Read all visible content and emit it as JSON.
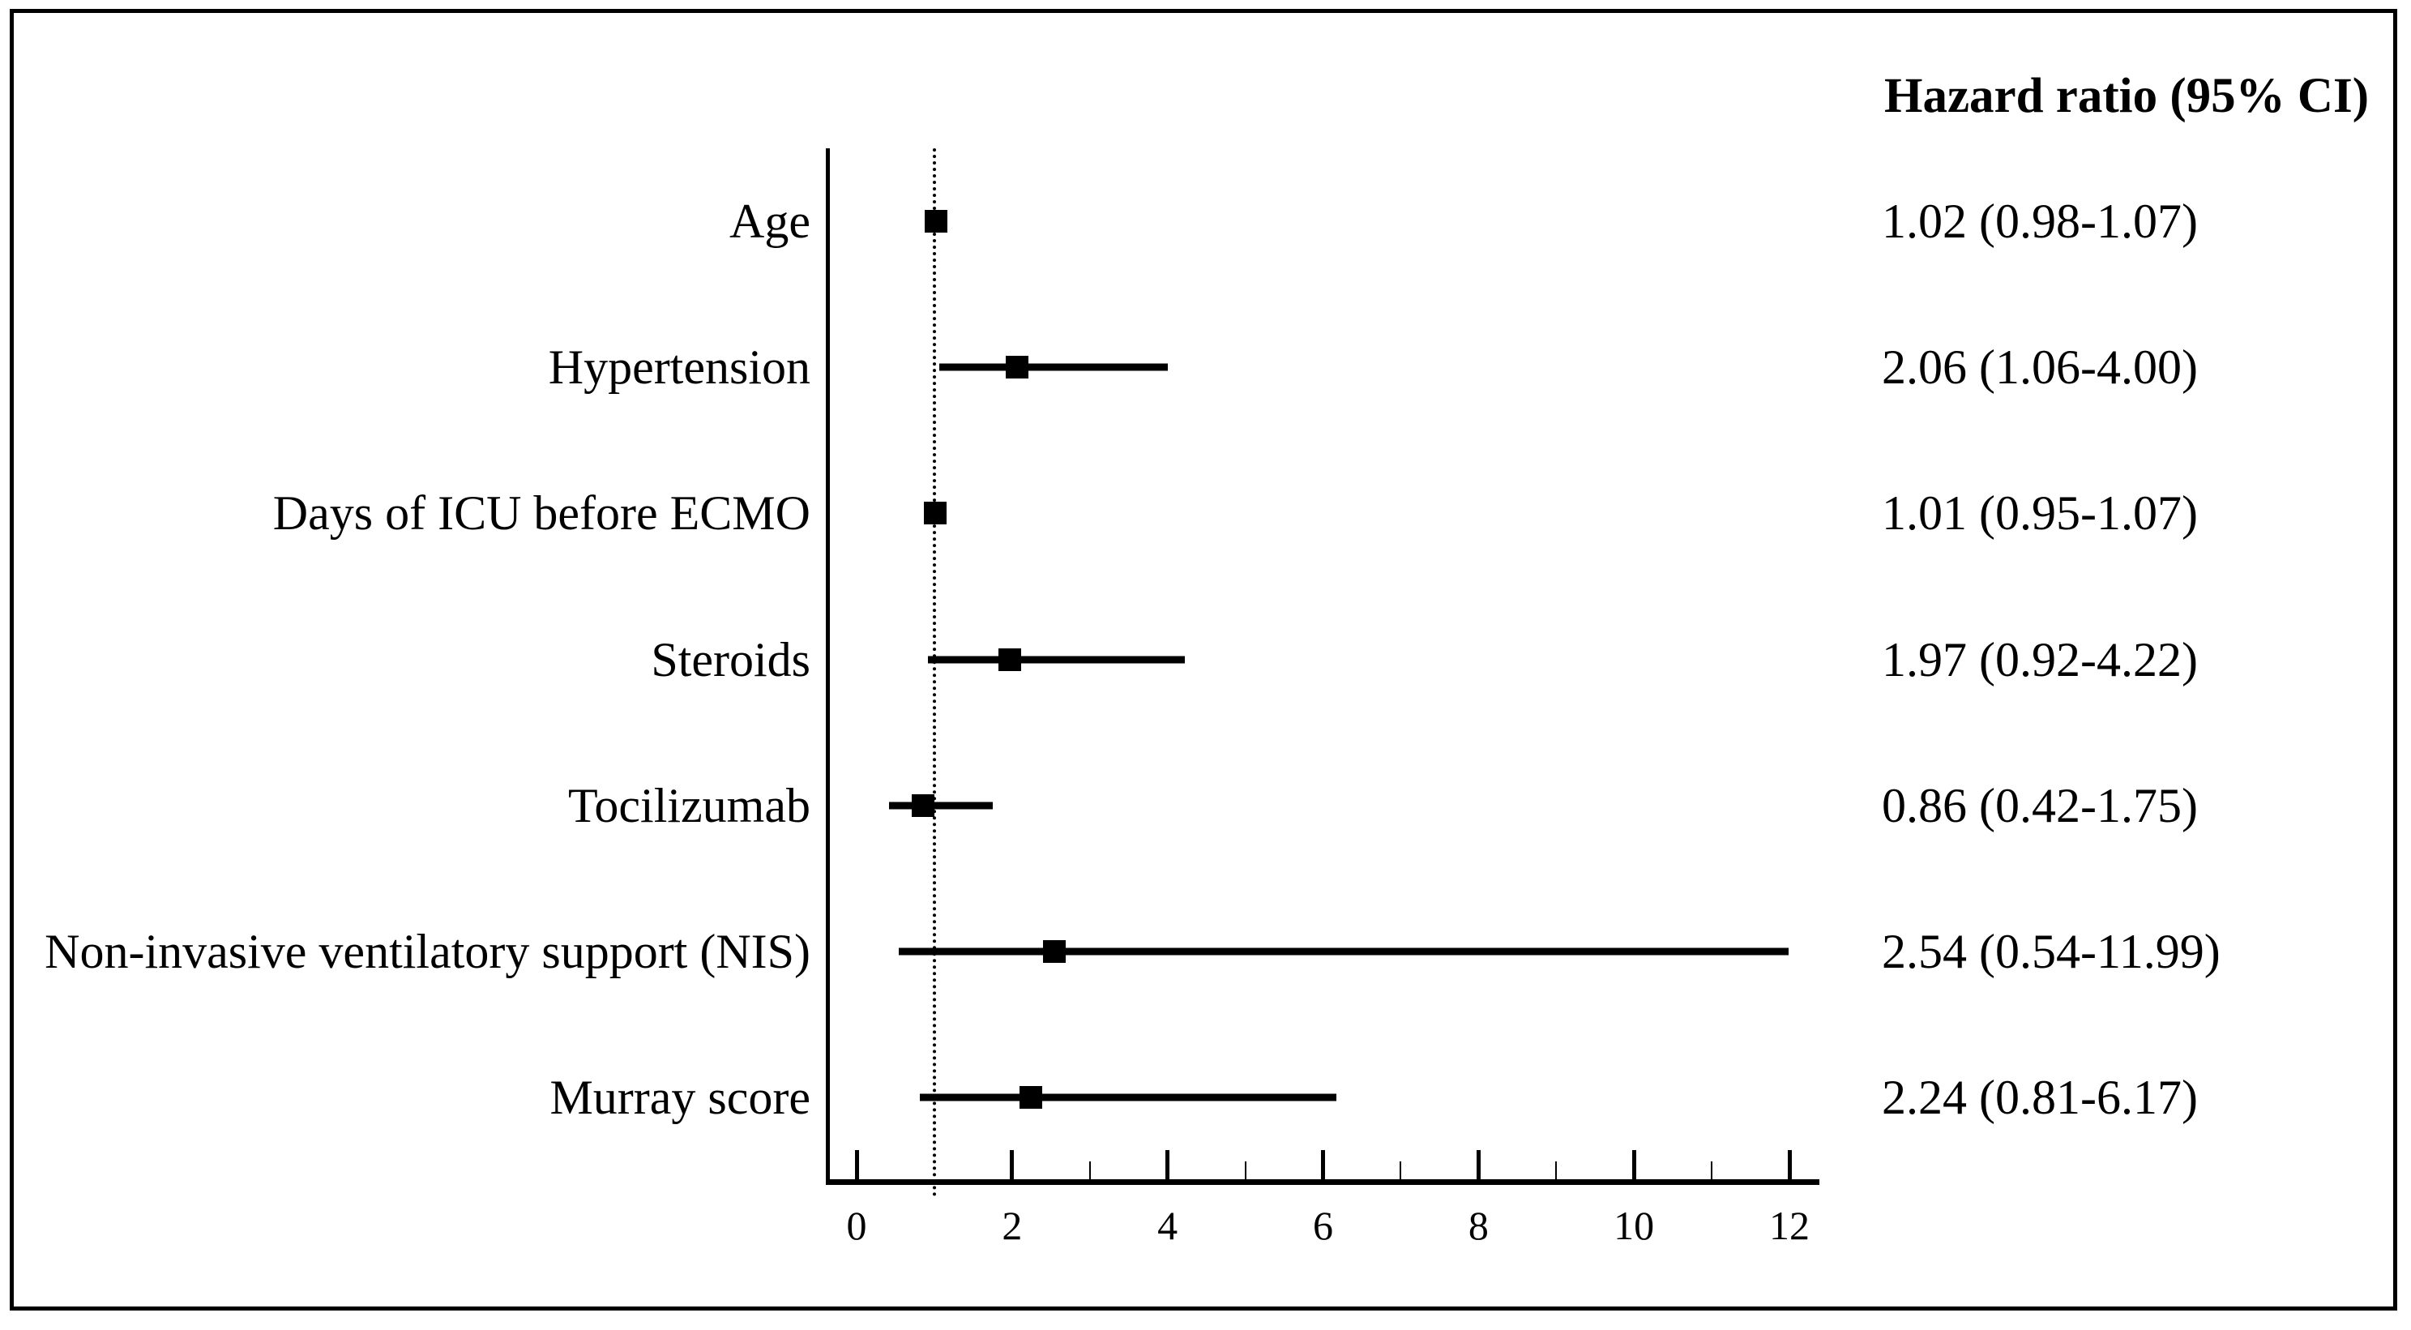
{
  "figure": {
    "title": "Hazard ratio (95% CI)"
  },
  "chart_data": {
    "type": "scatter",
    "subtype": "forest-plot",
    "title": "Hazard ratio (95% CI)",
    "xlabel": "",
    "ylabel": "",
    "xlim": [
      0,
      12
    ],
    "grid": false,
    "reference_line_x": 1,
    "x_major_ticks": [
      0,
      2,
      4,
      6,
      8,
      10,
      12
    ],
    "x_minor_ticks": [
      3,
      5,
      7,
      9,
      11
    ],
    "rows": [
      {
        "label": "Age",
        "hr": 1.02,
        "ci_low": 0.98,
        "ci_high": 1.07,
        "display": "1.02 (0.98-1.07)"
      },
      {
        "label": "Hypertension",
        "hr": 2.06,
        "ci_low": 1.06,
        "ci_high": 4.0,
        "display": "2.06 (1.06-4.00)"
      },
      {
        "label": "Days of ICU before ECMO",
        "hr": 1.01,
        "ci_low": 0.95,
        "ci_high": 1.07,
        "display": "1.01 (0.95-1.07)"
      },
      {
        "label": "Steroids",
        "hr": 1.97,
        "ci_low": 0.92,
        "ci_high": 4.22,
        "display": "1.97 (0.92-4.22)"
      },
      {
        "label": "Tocilizumab",
        "hr": 0.86,
        "ci_low": 0.42,
        "ci_high": 1.75,
        "display": "0.86 (0.42-1.75)"
      },
      {
        "label": "Non-invasive ventilatory support (NIS)",
        "hr": 2.54,
        "ci_low": 0.54,
        "ci_high": 11.99,
        "display": "2.54 (0.54-11.99)"
      },
      {
        "label": "Murray score",
        "hr": 2.24,
        "ci_low": 0.81,
        "ci_high": 6.17,
        "display": "2.24 (0.81-6.17)"
      }
    ],
    "colors": {
      "foreground": "#000000",
      "background": "#ffffff"
    }
  }
}
